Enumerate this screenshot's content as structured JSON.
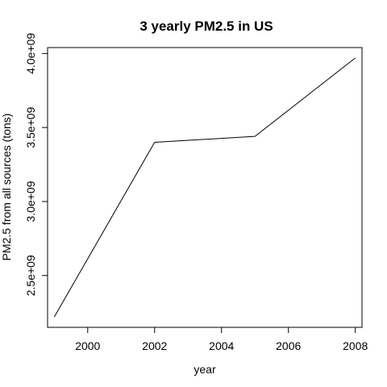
{
  "chart_data": {
    "type": "line",
    "title": "3 yearly PM2.5 in US",
    "xlabel": "year",
    "ylabel": "PM2.5 from all sources (tons)",
    "x": [
      1999,
      2002,
      2005,
      2008
    ],
    "series": [
      {
        "values": [
          2220000000.0,
          3400000000.0,
          3440000000.0,
          3970000000.0
        ]
      }
    ],
    "xlim": [
      1998.8,
      2008.2
    ],
    "ylim": [
      2150000000.0,
      4040000000.0
    ],
    "xticks": [
      2000,
      2002,
      2004,
      2006,
      2008
    ],
    "xtick_labels": [
      "2000",
      "2002",
      "2004",
      "2006",
      "2008"
    ],
    "yticks": [
      2500000000.0,
      3000000000.0,
      3500000000.0,
      4000000000.0
    ],
    "ytick_labels": [
      "2.5e+09",
      "3.0e+09",
      "3.5e+09",
      "4.0e+09"
    ],
    "grid": false,
    "line_color": "#000000"
  }
}
